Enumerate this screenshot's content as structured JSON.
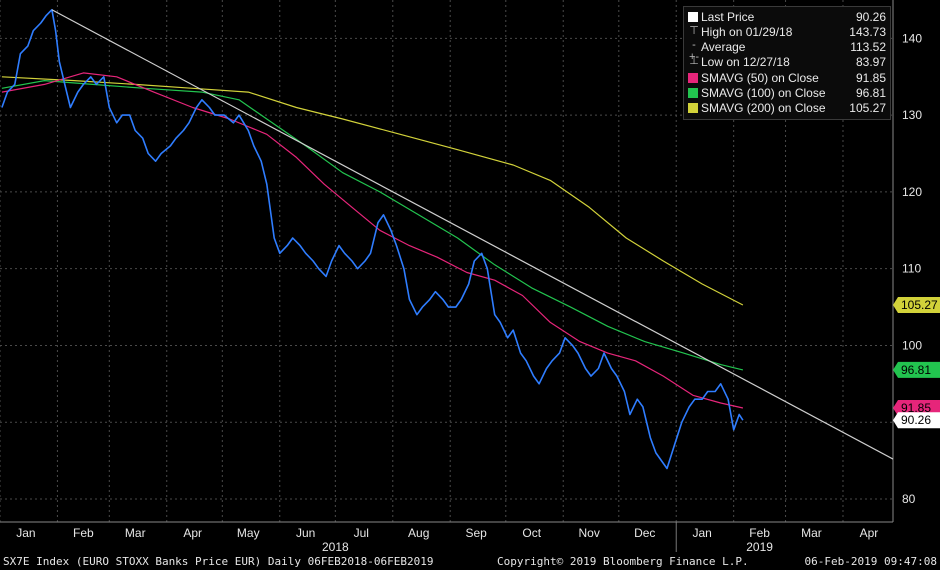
{
  "chart_data": {
    "type": "line",
    "ylim": [
      77,
      145
    ],
    "yticks": [
      80,
      90,
      100,
      110,
      120,
      130,
      140
    ],
    "grid": true,
    "months": [
      {
        "label": "Jan",
        "date": "2018-01-15"
      },
      {
        "label": "Feb",
        "date": "2018-02-15"
      },
      {
        "label": "Mar",
        "date": "2018-03-15"
      },
      {
        "label": "Apr",
        "date": "2018-04-15"
      },
      {
        "label": "May",
        "date": "2018-05-15"
      },
      {
        "label": "Jun",
        "date": "2018-06-15"
      },
      {
        "label": "Jul",
        "date": "2018-07-15"
      },
      {
        "label": "Aug",
        "date": "2018-08-15"
      },
      {
        "label": "Sep",
        "date": "2018-09-15"
      },
      {
        "label": "Oct",
        "date": "2018-10-15"
      },
      {
        "label": "Nov",
        "date": "2018-11-15"
      },
      {
        "label": "Dec",
        "date": "2018-12-15"
      },
      {
        "label": "Jan",
        "date": "2019-01-15"
      },
      {
        "label": "Feb",
        "date": "2019-02-15"
      },
      {
        "label": "Mar",
        "date": "2019-03-15"
      },
      {
        "label": "Apr",
        "date": "2019-04-15"
      }
    ],
    "years": [
      {
        "label": "2018",
        "date": "2018-07-01"
      },
      {
        "label": "2019",
        "date": "2019-02-15"
      }
    ],
    "x_start": "2018-01-01",
    "x_end": "2019-04-28",
    "series": [
      {
        "name": "Last Price",
        "color": "#2f7dff",
        "points": [
          [
            "2018-01-02",
            131
          ],
          [
            "2018-01-05",
            133
          ],
          [
            "2018-01-09",
            134
          ],
          [
            "2018-01-12",
            138
          ],
          [
            "2018-01-16",
            139
          ],
          [
            "2018-01-19",
            141
          ],
          [
            "2018-01-23",
            142
          ],
          [
            "2018-01-26",
            143
          ],
          [
            "2018-01-29",
            143.73
          ],
          [
            "2018-01-31",
            141
          ],
          [
            "2018-02-02",
            137
          ],
          [
            "2018-02-05",
            134
          ],
          [
            "2018-02-08",
            131
          ],
          [
            "2018-02-12",
            133
          ],
          [
            "2018-02-15",
            134
          ],
          [
            "2018-02-19",
            135
          ],
          [
            "2018-02-22",
            134
          ],
          [
            "2018-02-26",
            135
          ],
          [
            "2018-03-01",
            131
          ],
          [
            "2018-03-05",
            129
          ],
          [
            "2018-03-08",
            130
          ],
          [
            "2018-03-12",
            130
          ],
          [
            "2018-03-15",
            128
          ],
          [
            "2018-03-19",
            127
          ],
          [
            "2018-03-22",
            125
          ],
          [
            "2018-03-26",
            124
          ],
          [
            "2018-03-29",
            125
          ],
          [
            "2018-04-03",
            126
          ],
          [
            "2018-04-06",
            127
          ],
          [
            "2018-04-10",
            128
          ],
          [
            "2018-04-13",
            129
          ],
          [
            "2018-04-17",
            131
          ],
          [
            "2018-04-20",
            132
          ],
          [
            "2018-04-24",
            131
          ],
          [
            "2018-04-27",
            130
          ],
          [
            "2018-05-02",
            130
          ],
          [
            "2018-05-07",
            129
          ],
          [
            "2018-05-10",
            130
          ],
          [
            "2018-05-15",
            128
          ],
          [
            "2018-05-18",
            126
          ],
          [
            "2018-05-22",
            124
          ],
          [
            "2018-05-25",
            121
          ],
          [
            "2018-05-29",
            114
          ],
          [
            "2018-06-01",
            112
          ],
          [
            "2018-06-05",
            113
          ],
          [
            "2018-06-08",
            114
          ],
          [
            "2018-06-12",
            113
          ],
          [
            "2018-06-15",
            112
          ],
          [
            "2018-06-19",
            111
          ],
          [
            "2018-06-22",
            110
          ],
          [
            "2018-06-26",
            109
          ],
          [
            "2018-06-29",
            111
          ],
          [
            "2018-07-03",
            113
          ],
          [
            "2018-07-06",
            112
          ],
          [
            "2018-07-10",
            111
          ],
          [
            "2018-07-13",
            110
          ],
          [
            "2018-07-17",
            111
          ],
          [
            "2018-07-20",
            112
          ],
          [
            "2018-07-24",
            116
          ],
          [
            "2018-07-27",
            117
          ],
          [
            "2018-07-31",
            115
          ],
          [
            "2018-08-03",
            113
          ],
          [
            "2018-08-07",
            110
          ],
          [
            "2018-08-10",
            106
          ],
          [
            "2018-08-14",
            104
          ],
          [
            "2018-08-17",
            105
          ],
          [
            "2018-08-21",
            106
          ],
          [
            "2018-08-24",
            107
          ],
          [
            "2018-08-28",
            106
          ],
          [
            "2018-08-31",
            105
          ],
          [
            "2018-09-04",
            105
          ],
          [
            "2018-09-07",
            106
          ],
          [
            "2018-09-11",
            108
          ],
          [
            "2018-09-14",
            111
          ],
          [
            "2018-09-18",
            112
          ],
          [
            "2018-09-21",
            110
          ],
          [
            "2018-09-25",
            104
          ],
          [
            "2018-09-28",
            103
          ],
          [
            "2018-10-02",
            101
          ],
          [
            "2018-10-05",
            102
          ],
          [
            "2018-10-09",
            99
          ],
          [
            "2018-10-12",
            98
          ],
          [
            "2018-10-16",
            96
          ],
          [
            "2018-10-19",
            95
          ],
          [
            "2018-10-23",
            97
          ],
          [
            "2018-10-26",
            98
          ],
          [
            "2018-10-30",
            99
          ],
          [
            "2018-11-02",
            101
          ],
          [
            "2018-11-06",
            100
          ],
          [
            "2018-11-09",
            99
          ],
          [
            "2018-11-13",
            97
          ],
          [
            "2018-11-16",
            96
          ],
          [
            "2018-11-20",
            97
          ],
          [
            "2018-11-23",
            99
          ],
          [
            "2018-11-27",
            97
          ],
          [
            "2018-11-30",
            96
          ],
          [
            "2018-12-04",
            94
          ],
          [
            "2018-12-07",
            91
          ],
          [
            "2018-12-11",
            93
          ],
          [
            "2018-12-14",
            92
          ],
          [
            "2018-12-18",
            88
          ],
          [
            "2018-12-21",
            86
          ],
          [
            "2018-12-27",
            83.97
          ],
          [
            "2018-12-31",
            87
          ],
          [
            "2019-01-04",
            90
          ],
          [
            "2019-01-08",
            92
          ],
          [
            "2019-01-11",
            93
          ],
          [
            "2019-01-15",
            93
          ],
          [
            "2019-01-18",
            94
          ],
          [
            "2019-01-22",
            94
          ],
          [
            "2019-01-25",
            95
          ],
          [
            "2019-01-29",
            93
          ],
          [
            "2019-02-01",
            89
          ],
          [
            "2019-02-04",
            91
          ],
          [
            "2019-02-06",
            90.26
          ]
        ]
      },
      {
        "name": "SMAVG (50)",
        "color": "#e6257a",
        "points": [
          [
            "2018-01-02",
            133
          ],
          [
            "2018-01-25",
            134
          ],
          [
            "2018-02-15",
            135.5
          ],
          [
            "2018-03-05",
            135
          ],
          [
            "2018-03-25",
            133
          ],
          [
            "2018-04-15",
            131
          ],
          [
            "2018-05-05",
            129.5
          ],
          [
            "2018-05-25",
            127.5
          ],
          [
            "2018-06-10",
            124.5
          ],
          [
            "2018-06-25",
            121
          ],
          [
            "2018-07-10",
            118
          ],
          [
            "2018-07-25",
            115
          ],
          [
            "2018-08-10",
            113
          ],
          [
            "2018-08-25",
            111.5
          ],
          [
            "2018-09-10",
            109.5
          ],
          [
            "2018-09-25",
            108.5
          ],
          [
            "2018-10-10",
            106.5
          ],
          [
            "2018-10-25",
            103
          ],
          [
            "2018-11-10",
            100.5
          ],
          [
            "2018-11-25",
            99
          ],
          [
            "2018-12-10",
            98
          ],
          [
            "2018-12-25",
            96
          ],
          [
            "2019-01-10",
            93.5
          ],
          [
            "2019-01-25",
            92.5
          ],
          [
            "2019-02-06",
            91.85
          ]
        ]
      },
      {
        "name": "SMAVG (100)",
        "color": "#22c44f",
        "points": [
          [
            "2018-01-02",
            133.5
          ],
          [
            "2018-01-25",
            134.5
          ],
          [
            "2018-02-20",
            134
          ],
          [
            "2018-03-20",
            133.5
          ],
          [
            "2018-04-20",
            133
          ],
          [
            "2018-05-10",
            132
          ],
          [
            "2018-05-25",
            129.5
          ],
          [
            "2018-06-15",
            126
          ],
          [
            "2018-07-05",
            122.5
          ],
          [
            "2018-07-25",
            120
          ],
          [
            "2018-08-15",
            117
          ],
          [
            "2018-09-05",
            114
          ],
          [
            "2018-09-25",
            110.5
          ],
          [
            "2018-10-15",
            107.5
          ],
          [
            "2018-11-05",
            105
          ],
          [
            "2018-11-25",
            102.5
          ],
          [
            "2018-12-15",
            100.5
          ],
          [
            "2019-01-05",
            99
          ],
          [
            "2019-01-25",
            97.5
          ],
          [
            "2019-02-06",
            96.81
          ]
        ]
      },
      {
        "name": "SMAVG (200)",
        "color": "#d2d23a",
        "points": [
          [
            "2018-01-02",
            135
          ],
          [
            "2018-02-10",
            134.5
          ],
          [
            "2018-03-15",
            134
          ],
          [
            "2018-04-15",
            133.5
          ],
          [
            "2018-05-15",
            133
          ],
          [
            "2018-06-10",
            131
          ],
          [
            "2018-07-05",
            129.5
          ],
          [
            "2018-08-05",
            127.5
          ],
          [
            "2018-09-05",
            125.5
          ],
          [
            "2018-10-05",
            123.5
          ],
          [
            "2018-10-25",
            121.5
          ],
          [
            "2018-11-15",
            118
          ],
          [
            "2018-12-05",
            114
          ],
          [
            "2018-12-25",
            111
          ],
          [
            "2019-01-15",
            108
          ],
          [
            "2019-02-06",
            105.27
          ]
        ]
      }
    ],
    "trendline": {
      "color": "#cfcfcf",
      "points": [
        [
          "2018-01-29",
          143.73
        ],
        [
          "2019-04-28",
          85.2
        ]
      ]
    },
    "value_labels": [
      {
        "text": "105.27",
        "value": 105.27,
        "bg": "#d2d23a",
        "fg": "#000000"
      },
      {
        "text": "96.81",
        "value": 96.81,
        "bg": "#22c44f",
        "fg": "#000000"
      },
      {
        "text": "91.85",
        "value": 91.85,
        "bg": "#e6257a",
        "fg": "#000000"
      },
      {
        "text": "90.26",
        "value": 90.26,
        "bg": "#ffffff",
        "fg": "#000000"
      }
    ]
  },
  "legend": {
    "rows": [
      {
        "label": "Last Price",
        "value": "90.26",
        "swatch": "#ffffff",
        "kind": "box"
      },
      {
        "label": "High on 01/29/18",
        "value": "143.73",
        "swatch": "#bbbbbb",
        "kind": "high",
        "symbol": "⊤"
      },
      {
        "label": "Average",
        "value": "113.52",
        "swatch": "#bbbbbb",
        "kind": "avg",
        "symbol": "-+-"
      },
      {
        "label": "Low on 12/27/18",
        "value": "83.97",
        "swatch": "#bbbbbb",
        "kind": "low",
        "symbol": "⊥"
      },
      {
        "label": "SMAVG (50)  on Close",
        "value": "91.85",
        "swatch": "#e6257a",
        "kind": "box"
      },
      {
        "label": "SMAVG (100)  on Close",
        "value": "96.81",
        "swatch": "#22c44f",
        "kind": "box"
      },
      {
        "label": "SMAVG (200)  on Close",
        "value": "105.27",
        "swatch": "#d2d23a",
        "kind": "box"
      }
    ]
  },
  "footer": {
    "left": "SX7E Index (EURO STOXX Banks Price EUR)  Daily 06FEB2018-06FEB2019",
    "center": "Copyright© 2019 Bloomberg Finance L.P.",
    "right": "06-Feb-2019 09:47:08"
  }
}
